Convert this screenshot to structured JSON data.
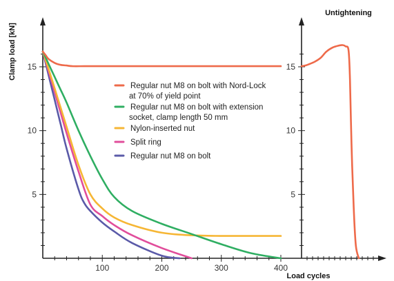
{
  "chart_data": {
    "type": "line",
    "ylabel": "Clamp load [kN]",
    "xlabel": "Load cycles",
    "right_panel_title": "Untightening",
    "xlim": [
      0,
      420
    ],
    "ylim": [
      0,
      17
    ],
    "x_ticks": [
      100,
      200,
      300,
      400
    ],
    "y_ticks": [
      5,
      10,
      15
    ],
    "legend_position": "center",
    "series": [
      {
        "name": "Regular nut M8 on bolt with Nord-Lock",
        "name_line2": "at 70% of yield point",
        "color": "#ee6a4a",
        "x": [
          0,
          5,
          10,
          20,
          30,
          40,
          50,
          70,
          100,
          150,
          200,
          250,
          300,
          350,
          400
        ],
        "y": [
          16.2,
          15.9,
          15.6,
          15.3,
          15.15,
          15.1,
          15.05,
          15.05,
          15.05,
          15.05,
          15.05,
          15.05,
          15.05,
          15.05,
          15.05
        ]
      },
      {
        "name": "Regular nut M8 on bolt with extension",
        "name_line2": "socket, clamp length 50 mm",
        "color": "#2fae62",
        "x": [
          0,
          10,
          20,
          30,
          40,
          60,
          80,
          100,
          120,
          150,
          200,
          250,
          300,
          350,
          400
        ],
        "y": [
          16.2,
          15.2,
          14.2,
          13.2,
          12.2,
          10.0,
          8.0,
          6.2,
          4.8,
          3.7,
          2.7,
          1.9,
          1.1,
          0.4,
          0.0
        ]
      },
      {
        "name": "Nylon-inserted nut",
        "name_line2": "",
        "color": "#f6b634",
        "x": [
          0,
          10,
          20,
          30,
          40,
          60,
          80,
          100,
          120,
          150,
          200,
          250,
          300,
          350,
          400
        ],
        "y": [
          16.2,
          14.8,
          13.3,
          11.8,
          10.3,
          7.3,
          5.0,
          3.9,
          3.2,
          2.6,
          2.0,
          1.8,
          1.75,
          1.75,
          1.75
        ]
      },
      {
        "name": "Split ring",
        "name_line2": "",
        "color": "#e14d9b",
        "x": [
          0,
          10,
          20,
          30,
          40,
          60,
          80,
          100,
          120,
          150,
          200,
          250
        ],
        "y": [
          16.2,
          14.6,
          13.0,
          11.4,
          9.8,
          6.8,
          4.2,
          3.3,
          2.6,
          1.8,
          0.8,
          0.0
        ]
      },
      {
        "name": "Regular nut M8 on bolt",
        "name_line2": "",
        "color": "#5a5aa8",
        "x": [
          0,
          10,
          20,
          30,
          40,
          60,
          70,
          80,
          100,
          120,
          150,
          200,
          230
        ],
        "y": [
          16.2,
          14.3,
          12.4,
          10.5,
          8.6,
          5.4,
          4.3,
          3.7,
          2.8,
          2.1,
          1.2,
          0.2,
          0.0
        ]
      }
    ],
    "untightening_curve": {
      "color": "#ee6a4a",
      "t": [
        0,
        0.05,
        0.1,
        0.18,
        0.26,
        0.34,
        0.42,
        0.5,
        0.56,
        0.6,
        0.64,
        0.66,
        0.68,
        0.71,
        0.74,
        0.78
      ],
      "y": [
        15.05,
        15.1,
        15.2,
        15.4,
        15.7,
        16.2,
        16.5,
        16.65,
        16.7,
        16.6,
        16.3,
        14.0,
        9.0,
        4.0,
        1.0,
        0.0
      ]
    }
  }
}
